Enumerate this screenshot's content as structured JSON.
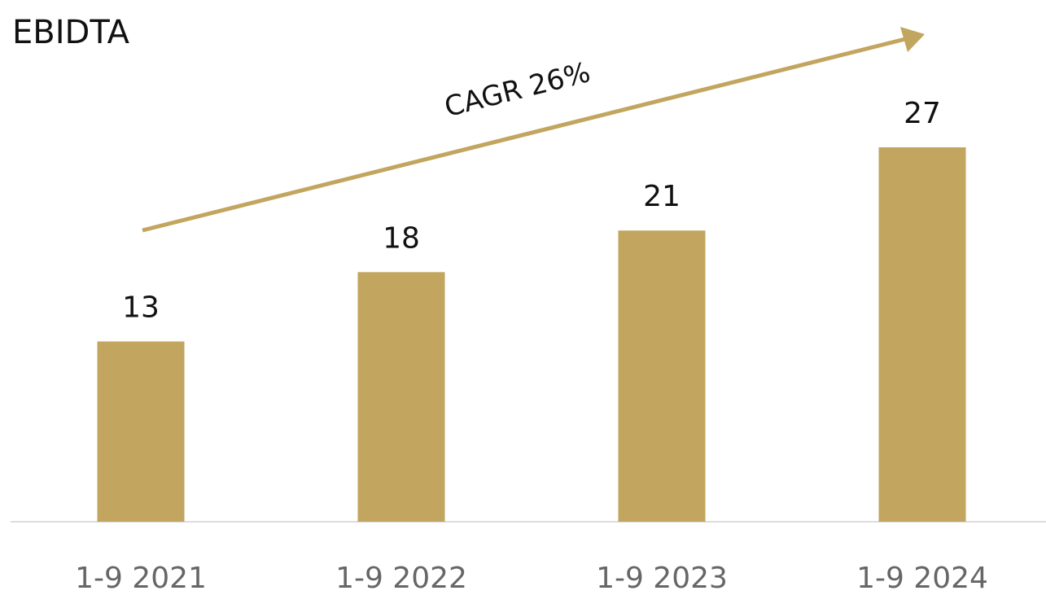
{
  "chart_data": {
    "type": "bar",
    "title": "EBIDTA",
    "categories": [
      "1-9 2021",
      "1-9 2022",
      "1-9 2023",
      "1-9 2024"
    ],
    "values": [
      13,
      18,
      21,
      27
    ],
    "color": "#c2a55e",
    "annotation": "CAGR 26%"
  }
}
